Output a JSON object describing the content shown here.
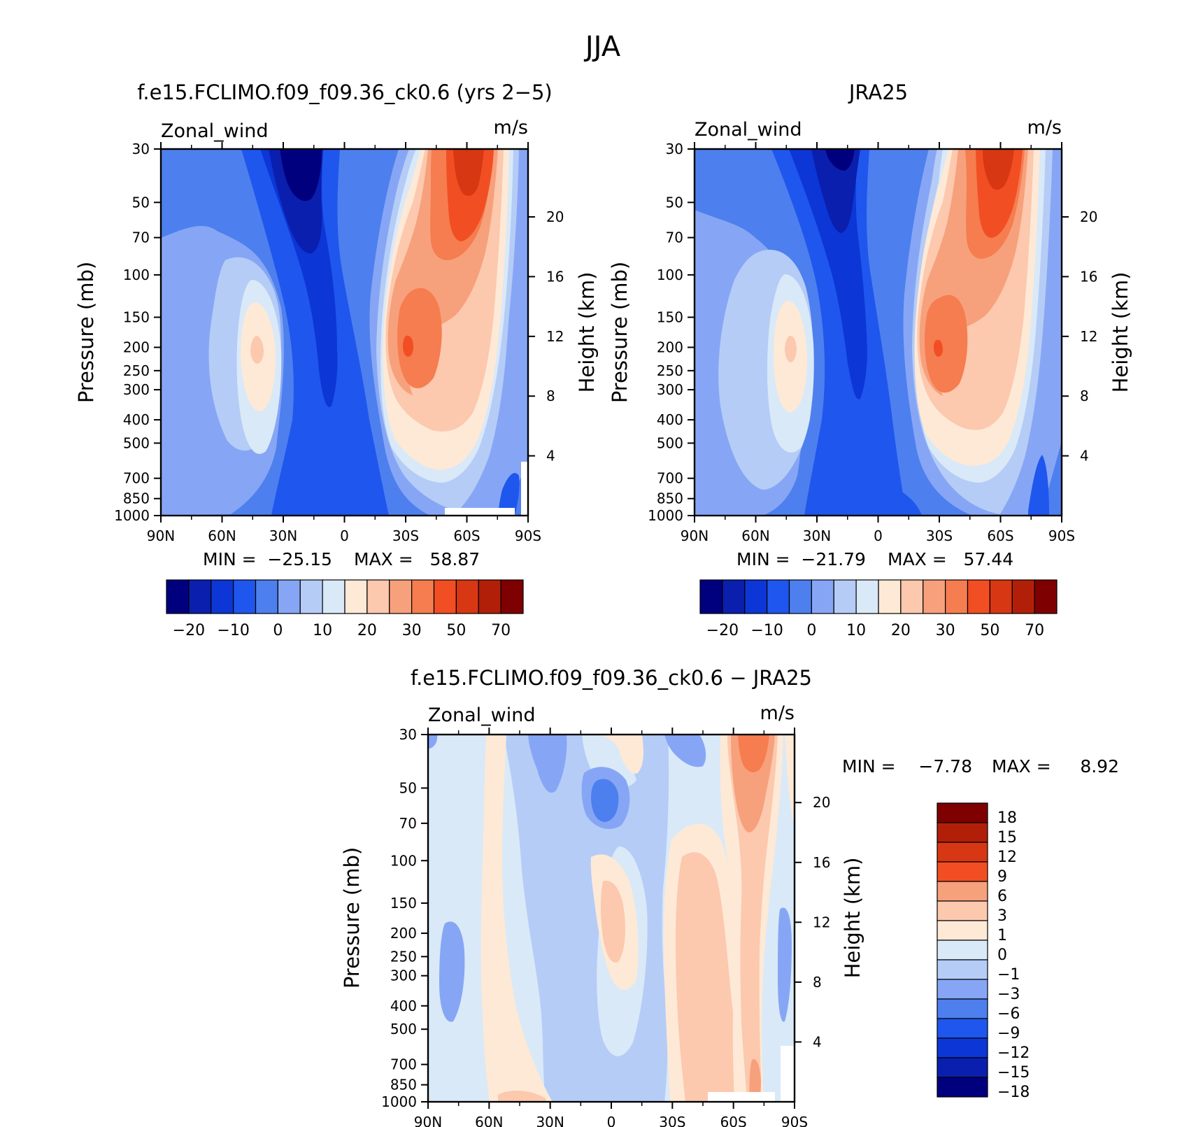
{
  "figure": {
    "title": "JJA"
  },
  "chart_data": [
    {
      "type": "heatmap",
      "id": "model",
      "title": "f.e15.FCLIMO.f09_f09.36_ck0.6 (yrs 2−5)",
      "variable_label": "Zonal_wind",
      "units_label": "m/s",
      "xlabel": "",
      "ylabel": "Pressure (mb)",
      "y2label": "Height (km)",
      "x_ticks": [
        "90N",
        "60N",
        "30N",
        "0",
        "30S",
        "60S",
        "90S"
      ],
      "y_ticks": [
        "30",
        "50",
        "70",
        "100",
        "150",
        "200",
        "250",
        "300",
        "400",
        "500",
        "700",
        "850",
        "1000"
      ],
      "y2_ticks": [
        "20",
        "16",
        "12",
        "8",
        "4"
      ],
      "min_label": "MIN =  −25.15",
      "max_label": "MAX =   58.87",
      "colorbar": {
        "colors": [
          "#00007f",
          "#0a1fae",
          "#0c36d6",
          "#1f56ee",
          "#4d7fee",
          "#86a6f5",
          "#b5ccf7",
          "#d9e9f8",
          "#fde9d6",
          "#fcc8ae",
          "#f7a07c",
          "#f57d4f",
          "#f24e24",
          "#d73713",
          "#b21f09",
          "#7f0000"
        ],
        "tick_labels": [
          "−20",
          "−10",
          "0",
          "10",
          "20",
          "30",
          "50",
          "70"
        ]
      }
    },
    {
      "type": "heatmap",
      "id": "obs",
      "title": "JRA25",
      "variable_label": "Zonal_wind",
      "units_label": "m/s",
      "xlabel": "",
      "ylabel": "Pressure (mb)",
      "y2label": "Height (km)",
      "x_ticks": [
        "90N",
        "60N",
        "30N",
        "0",
        "30S",
        "60S",
        "90S"
      ],
      "y_ticks": [
        "30",
        "50",
        "70",
        "100",
        "150",
        "200",
        "250",
        "300",
        "400",
        "500",
        "700",
        "850",
        "1000"
      ],
      "y2_ticks": [
        "20",
        "16",
        "12",
        "8",
        "4"
      ],
      "min_label": "MIN =  −21.79",
      "max_label": "MAX =   57.44",
      "colorbar": {
        "colors": [
          "#00007f",
          "#0a1fae",
          "#0c36d6",
          "#1f56ee",
          "#4d7fee",
          "#86a6f5",
          "#b5ccf7",
          "#d9e9f8",
          "#fde9d6",
          "#fcc8ae",
          "#f7a07c",
          "#f57d4f",
          "#f24e24",
          "#d73713",
          "#b21f09",
          "#7f0000"
        ],
        "tick_labels": [
          "−20",
          "−10",
          "0",
          "10",
          "20",
          "30",
          "50",
          "70"
        ]
      }
    },
    {
      "type": "heatmap",
      "id": "diff",
      "title": "f.e15.FCLIMO.f09_f09.36_ck0.6 − JRA25",
      "variable_label": "Zonal_wind",
      "units_label": "m/s",
      "xlabel": "",
      "ylabel": "Pressure (mb)",
      "y2label": "Height (km)",
      "x_ticks": [
        "90N",
        "60N",
        "30N",
        "0",
        "30S",
        "60S",
        "90S"
      ],
      "y_ticks": [
        "30",
        "50",
        "70",
        "100",
        "150",
        "200",
        "250",
        "300",
        "400",
        "500",
        "700",
        "850",
        "1000"
      ],
      "y2_ticks": [
        "20",
        "16",
        "12",
        "8",
        "4"
      ],
      "min_label": "MIN =",
      "min_value": "−7.78",
      "max_label": "MAX =",
      "max_value": "8.92",
      "colorbar": {
        "colors": [
          "#00007f",
          "#0a1fae",
          "#0c36d6",
          "#1f56ee",
          "#4d7fee",
          "#86a6f5",
          "#b5ccf7",
          "#d9e9f8",
          "#fde9d6",
          "#fcc8ae",
          "#f7a07c",
          "#f24e24",
          "#d73713",
          "#b21f09",
          "#7f0000"
        ],
        "tick_labels": [
          "−18",
          "−15",
          "−12",
          "−9",
          "−6",
          "−3",
          "−1",
          "0",
          "1",
          "3",
          "6",
          "9",
          "12",
          "15",
          "18"
        ]
      }
    }
  ]
}
